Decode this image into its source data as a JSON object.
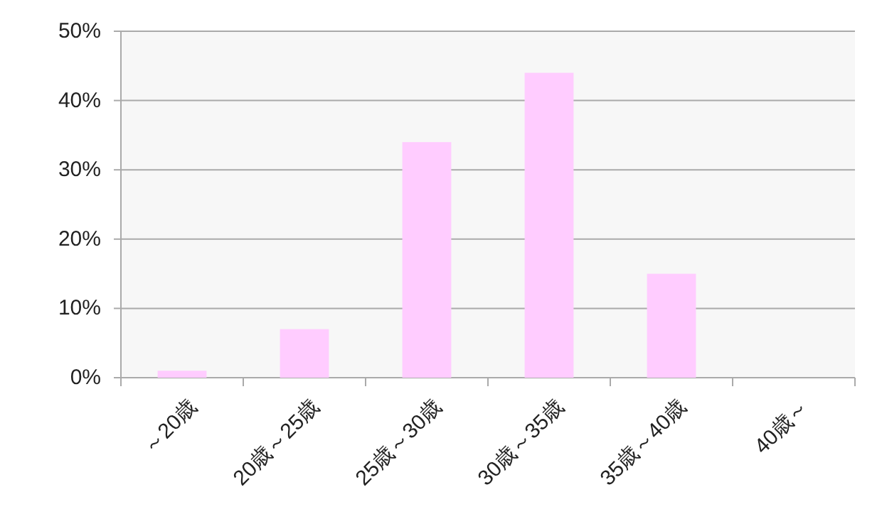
{
  "chart_data": {
    "type": "bar",
    "categories": [
      "～20歳",
      "20歳～25歳",
      "25歳～30歳",
      "30歳～35歳",
      "35歳～40歳",
      "40歳～"
    ],
    "values": [
      1,
      7,
      34,
      44,
      15,
      0
    ],
    "color": "#ffccff",
    "ylim": [
      0,
      50
    ],
    "yticks": [
      {
        "value": 0,
        "label": "0%"
      },
      {
        "value": 10,
        "label": "10%"
      },
      {
        "value": 20,
        "label": "20%"
      },
      {
        "value": 30,
        "label": "30%"
      },
      {
        "value": 40,
        "label": "40%"
      },
      {
        "value": 50,
        "label": "50%"
      }
    ],
    "grid": "y"
  }
}
